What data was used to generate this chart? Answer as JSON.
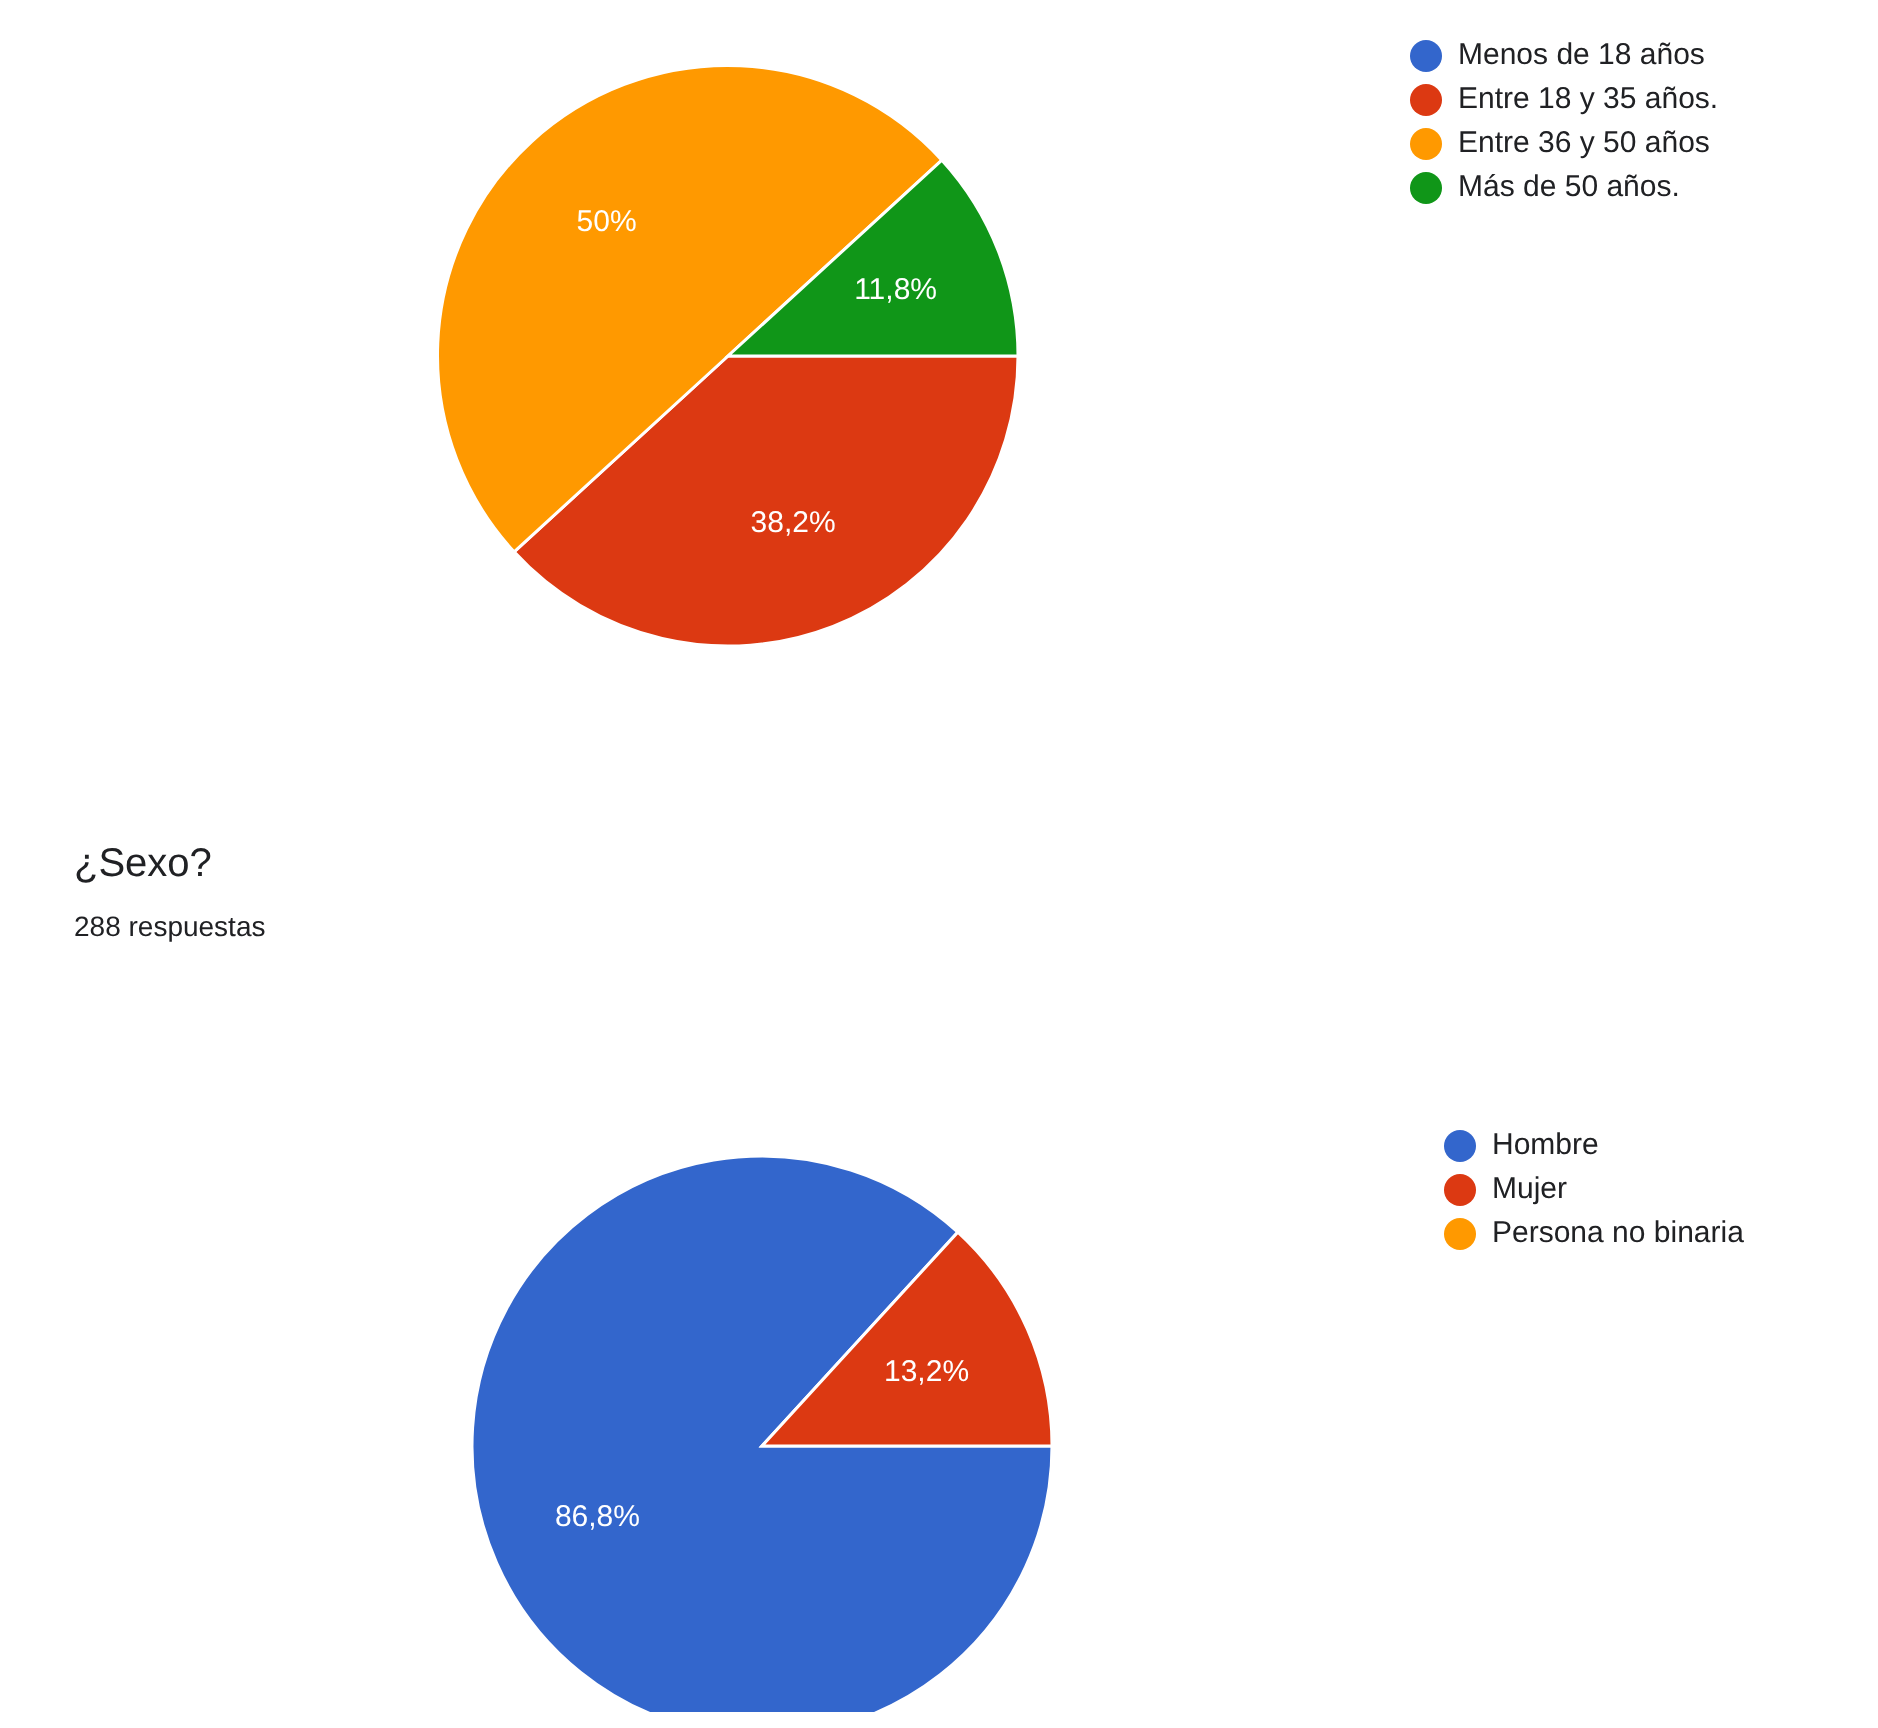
{
  "chart_data": [
    {
      "type": "pie",
      "categories": [
        "Menos de 18 años",
        "Entre 18 y 35 años.",
        "Entre 36 y 50 años",
        "Más de 50 años."
      ],
      "values": [
        0,
        38.2,
        50,
        11.8
      ],
      "colors": [
        "#3366cc",
        "#dc3912",
        "#ff9900",
        "#109618"
      ],
      "value_labels": [
        null,
        "38,2%",
        "50%",
        "11,8%"
      ],
      "legend": "top right"
    },
    {
      "type": "pie",
      "title": "¿Sexo?",
      "subtitle": "288 respuestas",
      "categories": [
        "Hombre",
        "Mujer",
        "Persona no binaria"
      ],
      "values": [
        86.8,
        13.2,
        0
      ],
      "colors": [
        "#3366cc",
        "#dc3912",
        "#ff9900"
      ],
      "value_labels": [
        "86,8%",
        "13,2%",
        null
      ],
      "legend": "top right"
    }
  ]
}
